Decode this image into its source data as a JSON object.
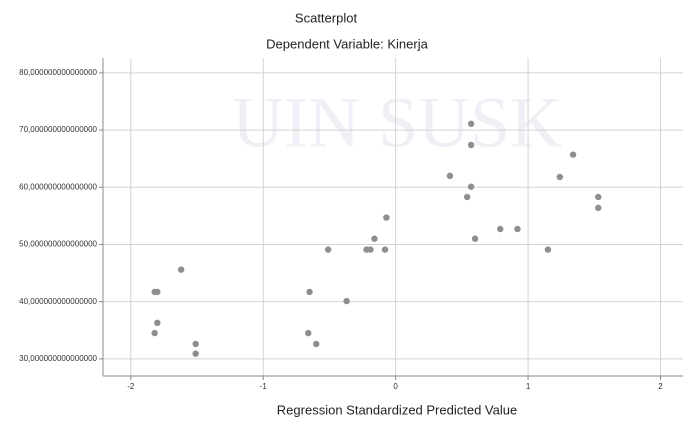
{
  "chart_data": {
    "type": "scatter",
    "title": "Scatterplot",
    "subtitle": "Dependent Variable: Kinerja",
    "watermark": "UIN SUSK",
    "x_label": "Regression Standardized Predicted Value",
    "color": "#8e8e8e",
    "grid": true,
    "xlim": [
      -2.21,
      2.17
    ],
    "ylim": [
      27.0,
      82.6
    ],
    "xticks": [
      -2,
      -1,
      0,
      1,
      2
    ],
    "yticks": [
      {
        "value": 30,
        "label": "30,000000000000000"
      },
      {
        "value": 40,
        "label": "40,000000000000000"
      },
      {
        "value": 50,
        "label": "50,000000000000000"
      },
      {
        "value": 60,
        "label": "60,000000000000000"
      },
      {
        "value": 70,
        "label": "70,000000000000000"
      },
      {
        "value": 80,
        "label": "80,000000000000000"
      }
    ],
    "x": [
      -1.62,
      -1.82,
      -1.8,
      -1.8,
      -1.82,
      -1.51,
      -1.51,
      -0.65,
      -0.66,
      -0.6,
      -0.37,
      -0.51,
      -0.22,
      -0.19,
      -0.16,
      -0.08,
      -0.07,
      0.41,
      0.57,
      0.57,
      0.57,
      0.54,
      0.6,
      0.79,
      0.92,
      1.15,
      1.24,
      1.34,
      1.53,
      1.53
    ],
    "values": [
      45.6,
      41.7,
      41.7,
      36.3,
      34.5,
      32.6,
      30.9,
      41.7,
      34.5,
      32.6,
      40.1,
      49.1,
      49.1,
      49.1,
      51.0,
      49.1,
      54.7,
      62.0,
      71.1,
      67.4,
      60.1,
      58.3,
      51.0,
      52.7,
      52.7,
      49.1,
      61.8,
      65.7,
      58.3,
      56.4
    ]
  }
}
